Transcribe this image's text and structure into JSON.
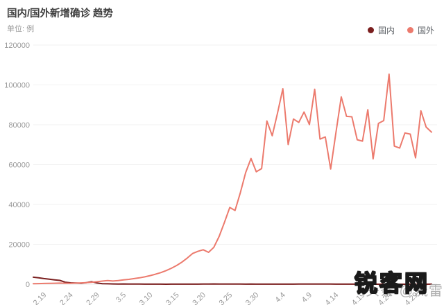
{
  "header": {
    "title": "国内/国外新增确诊 趋势",
    "subtitle": "单位: 例"
  },
  "legend": {
    "position": "top-right",
    "items": [
      {
        "label": "国内",
        "color": "#7a1e1e"
      },
      {
        "label": "国外",
        "color": "#ec7a6d"
      }
    ]
  },
  "watermark": {
    "primary": "锐客网",
    "primary_color": "#f5860f",
    "secondary": "头条 @流雷电",
    "secondary_color": "#9e9e9e"
  },
  "chart_data": {
    "type": "line",
    "title": "国内/国外新增确诊 趋势",
    "ylabel": "单位: 例",
    "ylim": [
      0,
      120000
    ],
    "ytick_step": 20000,
    "y_tick_labels": [
      "0",
      "20000",
      "40000",
      "60000",
      "80000",
      "100000",
      "120000"
    ],
    "grid": true,
    "legend_position": "top-right",
    "x": [
      "2.17",
      "2.18",
      "2.19",
      "2.20",
      "2.21",
      "2.22",
      "2.23",
      "2.24",
      "2.25",
      "2.26",
      "2.27",
      "2.28",
      "2.29",
      "3.1",
      "3.2",
      "3.3",
      "3.4",
      "3.5",
      "3.6",
      "3.7",
      "3.8",
      "3.9",
      "3.10",
      "3.11",
      "3.12",
      "3.13",
      "3.14",
      "3.15",
      "3.16",
      "3.17",
      "3.18",
      "3.19",
      "3.20",
      "3.21",
      "3.22",
      "3.23",
      "3.24",
      "3.25",
      "3.26",
      "3.27",
      "3.28",
      "3.29",
      "3.30",
      "3.31",
      "4.1",
      "4.2",
      "4.3",
      "4.4",
      "4.5",
      "4.6",
      "4.7",
      "4.8",
      "4.9",
      "4.10",
      "4.11",
      "4.12",
      "4.13",
      "4.14",
      "4.15",
      "4.16",
      "4.17",
      "4.18",
      "4.19",
      "4.20",
      "4.21",
      "4.22",
      "4.23",
      "4.24",
      "4.25",
      "4.26",
      "4.27",
      "4.28",
      "4.29",
      "4.30",
      "5.1",
      "5.2"
    ],
    "x_tick_indices": [
      2,
      7,
      12,
      17,
      22,
      27,
      32,
      37,
      42,
      47,
      52,
      57,
      62,
      67,
      72
    ],
    "series": [
      {
        "name": "国内",
        "color": "#7a1e1e",
        "values": [
          3500,
          3200,
          2800,
          2500,
          2200,
          1900,
          1000,
          700,
          600,
          500,
          800,
          1300,
          600,
          250,
          210,
          130,
          120,
          140,
          100,
          90,
          70,
          45,
          30,
          25,
          20,
          15,
          20,
          27,
          34,
          39,
          46,
          41,
          78,
          110,
          130,
          100,
          120,
          67,
          55,
          120,
          45,
          54,
          31,
          42,
          36,
          35,
          32,
          39,
          30,
          32,
          62,
          63,
          99,
          97,
          108,
          99,
          89,
          46,
          27,
          50,
          25,
          23,
          12,
          30,
          11,
          6,
          3,
          10,
          12,
          6,
          3,
          22,
          12,
          4,
          12,
          20
        ]
      },
      {
        "name": "国外",
        "color": "#ec7a6d",
        "values": [
          250,
          300,
          400,
          450,
          500,
          550,
          500,
          450,
          550,
          650,
          800,
          1000,
          1250,
          1550,
          1800,
          1600,
          1850,
          2150,
          2450,
          2800,
          3200,
          3700,
          4300,
          5000,
          5800,
          6800,
          8000,
          9400,
          11100,
          13100,
          15400,
          16500,
          17300,
          16000,
          18500,
          24000,
          31000,
          38500,
          37000,
          46000,
          56000,
          63100,
          56400,
          58000,
          81900,
          74500,
          86000,
          98100,
          70100,
          82900,
          81200,
          86400,
          80100,
          97800,
          72800,
          73900,
          57800,
          76000,
          94000,
          84200,
          84000,
          72500,
          71800,
          87600,
          62900,
          80700,
          82100,
          105400,
          69300,
          68300,
          75900,
          75300,
          63400,
          87000,
          78800,
          76300
        ]
      }
    ]
  }
}
